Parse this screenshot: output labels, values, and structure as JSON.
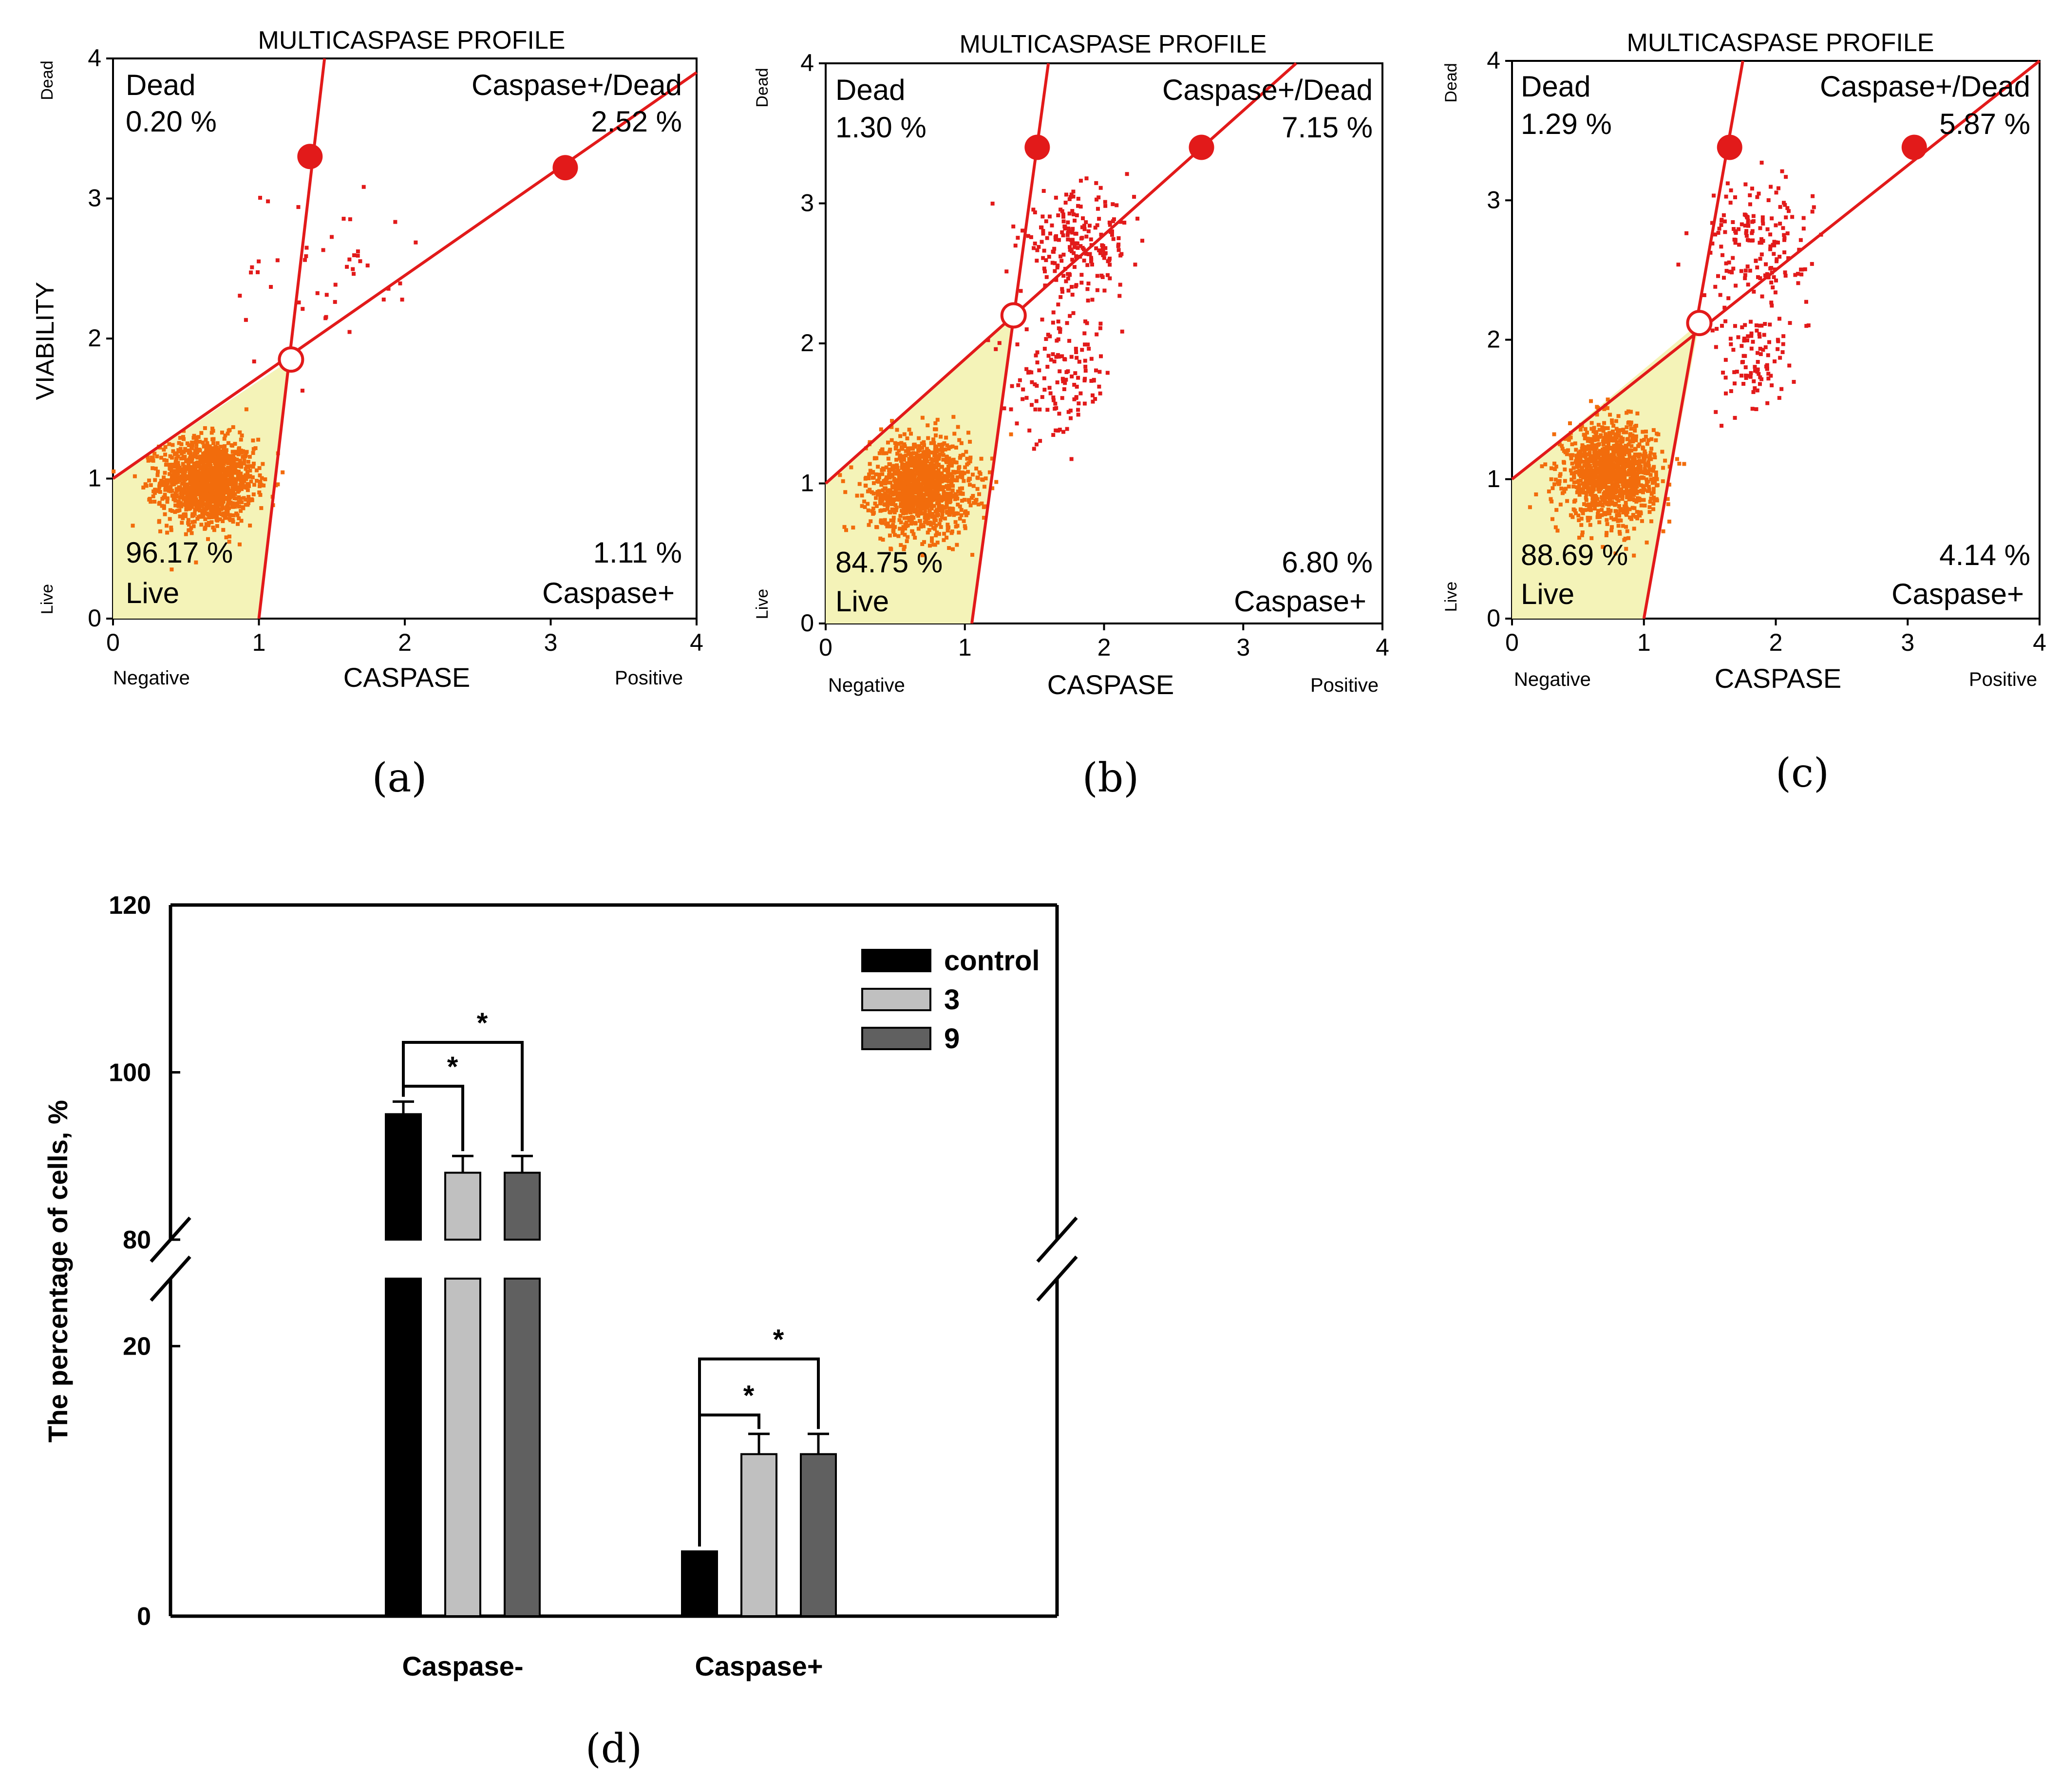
{
  "chart_data": [
    {
      "id": "a",
      "type": "scatter",
      "panel_label": "(a)",
      "title": "MULTICASPASE PROFILE",
      "xlabel": "CASPASE",
      "ylabel": "VIABILITY",
      "x_low_label": "Negative",
      "x_high_label": "Positive",
      "y_low_label": "Live",
      "y_high_label": "Dead",
      "xlim": [
        0,
        4
      ],
      "ylim": [
        0,
        4
      ],
      "x_ticks": [
        "0",
        "1",
        "2",
        "3",
        "4"
      ],
      "y_ticks": [
        "0",
        "1",
        "2",
        "3",
        "4"
      ],
      "gate": {
        "center": [
          1.22,
          1.85
        ],
        "vertical_line": [
          [
            1.0,
            0
          ],
          [
            1.45,
            4
          ]
        ],
        "diagonal_line": [
          [
            0,
            1.0
          ],
          [
            4,
            3.9
          ]
        ],
        "handles": [
          [
            1.35,
            3.3
          ],
          [
            3.1,
            3.22
          ]
        ]
      },
      "quadrants": {
        "dead": {
          "label": "Dead",
          "value": "0.20 %"
        },
        "caspase_dead": {
          "label": "Caspase+/Dead",
          "value": "2.52 %"
        },
        "live": {
          "label": "Live",
          "value": "96.17 %"
        },
        "caspase": {
          "label": "Caspase+",
          "value": "1.11 %"
        }
      },
      "clusters": [
        {
          "x": 0.65,
          "y": 0.98,
          "spread_x": 0.16,
          "spread_y": 0.15,
          "count": 1400,
          "color": "#f26c0c"
        },
        {
          "x": 1.45,
          "y": 2.45,
          "spread_x": 0.35,
          "spread_y": 0.35,
          "count": 45,
          "color": "#e21a1a"
        }
      ]
    },
    {
      "id": "b",
      "type": "scatter",
      "panel_label": "(b)",
      "title": "MULTICASPASE PROFILE",
      "xlabel": "CASPASE",
      "ylabel": "",
      "x_low_label": "Negative",
      "x_high_label": "Positive",
      "y_low_label": "Live",
      "y_high_label": "Dead",
      "xlim": [
        0,
        4
      ],
      "ylim": [
        0,
        4
      ],
      "x_ticks": [
        "0",
        "1",
        "2",
        "3",
        "4"
      ],
      "y_ticks": [
        "0",
        "1",
        "2",
        "3",
        "4"
      ],
      "gate": {
        "center": [
          1.35,
          2.2
        ],
        "vertical_line": [
          [
            1.05,
            0
          ],
          [
            1.6,
            4
          ]
        ],
        "diagonal_line": [
          [
            0,
            1.0
          ],
          [
            4,
            4.55
          ]
        ],
        "handles": [
          [
            1.52,
            3.4
          ],
          [
            2.7,
            3.4
          ]
        ]
      },
      "quadrants": {
        "dead": {
          "label": "Dead",
          "value": "1.30 %"
        },
        "caspase_dead": {
          "label": "Caspase+/Dead",
          "value": "7.15 %"
        },
        "live": {
          "label": "Live",
          "value": "84.75 %"
        },
        "caspase": {
          "label": "Caspase+",
          "value": "6.80 %"
        }
      },
      "clusters": [
        {
          "x": 0.68,
          "y": 0.98,
          "spread_x": 0.18,
          "spread_y": 0.17,
          "count": 1300,
          "color": "#f26c0c"
        },
        {
          "x": 1.8,
          "y": 2.7,
          "spread_x": 0.2,
          "spread_y": 0.18,
          "count": 220,
          "color": "#e21a1a"
        },
        {
          "x": 1.7,
          "y": 1.75,
          "spread_x": 0.18,
          "spread_y": 0.22,
          "count": 140,
          "color": "#e21a1a"
        }
      ]
    },
    {
      "id": "c",
      "type": "scatter",
      "panel_label": "(c)",
      "title": "MULTICASPASE PROFILE",
      "xlabel": "CASPASE",
      "ylabel": "",
      "x_low_label": "Negative",
      "x_high_label": "Positive",
      "y_low_label": "Live",
      "y_high_label": "Dead",
      "xlim": [
        0,
        4
      ],
      "ylim": [
        0,
        4
      ],
      "x_ticks": [
        "0",
        "1",
        "2",
        "3",
        "4"
      ],
      "y_ticks": [
        "0",
        "1",
        "2",
        "3",
        "4"
      ],
      "gate": {
        "center": [
          1.42,
          2.12
        ],
        "vertical_line": [
          [
            1.0,
            0
          ],
          [
            1.75,
            4
          ]
        ],
        "diagonal_line": [
          [
            0,
            1.0
          ],
          [
            4,
            4.0
          ]
        ],
        "handles": [
          [
            1.65,
            3.38
          ],
          [
            3.05,
            3.38
          ]
        ]
      },
      "quadrants": {
        "dead": {
          "label": "Dead",
          "value": "1.29 %"
        },
        "caspase_dead": {
          "label": "Caspase+/Dead",
          "value": "5.87 %"
        },
        "live": {
          "label": "Live",
          "value": "88.69 %"
        },
        "caspase": {
          "label": "Caspase+",
          "value": "4.14 %"
        }
      },
      "clusters": [
        {
          "x": 0.75,
          "y": 1.05,
          "spread_x": 0.17,
          "spread_y": 0.17,
          "count": 1300,
          "color": "#f26c0c"
        },
        {
          "x": 1.85,
          "y": 2.7,
          "spread_x": 0.2,
          "spread_y": 0.22,
          "count": 170,
          "color": "#e21a1a"
        },
        {
          "x": 1.85,
          "y": 1.85,
          "spread_x": 0.15,
          "spread_y": 0.2,
          "count": 100,
          "color": "#e21a1a"
        }
      ]
    },
    {
      "id": "d",
      "type": "bar",
      "panel_label": "(d)",
      "title": "",
      "xlabel": "",
      "ylabel": "The percentage of cells, %",
      "categories": [
        "Caspase-",
        "Caspase+"
      ],
      "series": [
        {
          "name": "control",
          "values": [
            95,
            4.8
          ],
          "errors": [
            1.5,
            0
          ],
          "color": "#000000"
        },
        {
          "name": "3",
          "values": [
            88,
            12
          ],
          "errors": [
            2,
            1.5
          ],
          "color": "#c0c0c0"
        },
        {
          "name": "9",
          "values": [
            88,
            12
          ],
          "errors": [
            2,
            1.5
          ],
          "color": "#606060"
        }
      ],
      "y_axis_break": {
        "lower_range": [
          0,
          25
        ],
        "upper_range": [
          80,
          120
        ]
      },
      "y_ticks": [
        "0",
        "20",
        "80",
        "100",
        "120"
      ],
      "significance": [
        {
          "category": "Caspase-",
          "compare": [
            "control",
            "3"
          ],
          "label": "*"
        },
        {
          "category": "Caspase-",
          "compare": [
            "control",
            "9"
          ],
          "label": "*"
        },
        {
          "category": "Caspase+",
          "compare": [
            "control",
            "3"
          ],
          "label": "*"
        },
        {
          "category": "Caspase+",
          "compare": [
            "control",
            "9"
          ],
          "label": "*"
        }
      ],
      "legend_position": "top-right"
    }
  ]
}
